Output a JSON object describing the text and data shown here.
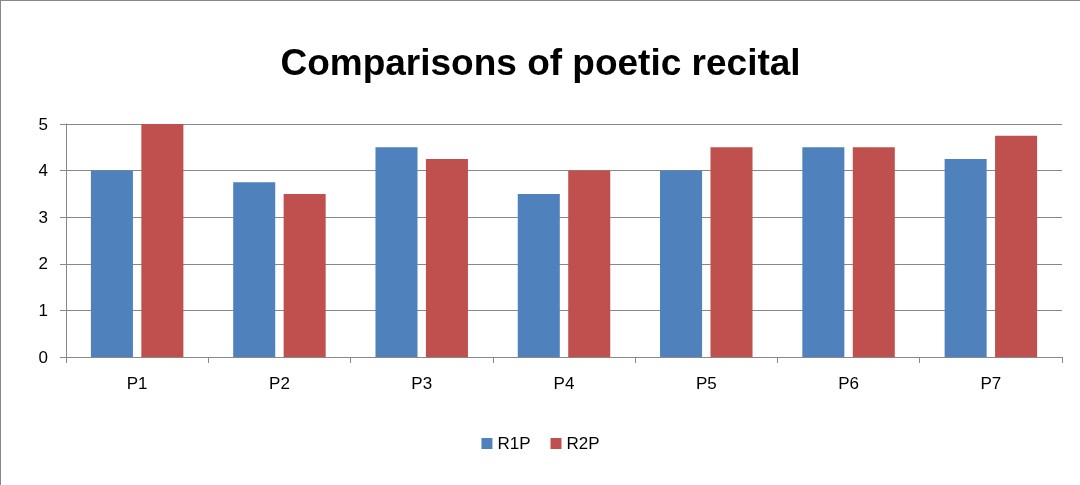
{
  "chart_data": {
    "type": "bar",
    "title": "Comparisons of poetic recital",
    "categories": [
      "P1",
      "P2",
      "P3",
      "P4",
      "P5",
      "P6",
      "P7"
    ],
    "series": [
      {
        "name": "R1P",
        "color": "#4f81bd",
        "values": [
          4,
          3.75,
          4.5,
          3.5,
          4,
          4.5,
          4.25
        ]
      },
      {
        "name": "R2P",
        "color": "#c0504d",
        "values": [
          5,
          3.5,
          4.25,
          4,
          4.5,
          4.5,
          4.75
        ]
      }
    ],
    "ylim": [
      0,
      5
    ],
    "yticks": [
      0,
      1,
      2,
      3,
      4,
      5
    ],
    "grid": "y",
    "legend": "bottom"
  }
}
